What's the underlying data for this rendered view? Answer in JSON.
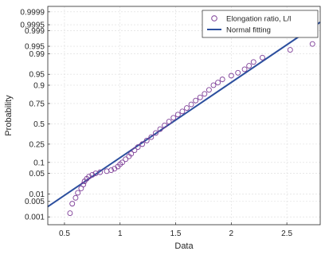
{
  "chart_data": {
    "type": "scatter",
    "title": "",
    "xlabel": "Data",
    "ylabel": "Probability",
    "xlim": [
      0.35,
      2.8
    ],
    "probability_scale": "normal",
    "grid": true,
    "x_ticks": [
      0.5,
      1,
      1.5,
      2,
      2.5
    ],
    "x_tick_labels": [
      "0.5",
      "1",
      "1.5",
      "2",
      "2.5"
    ],
    "y_ticks": [
      0.001,
      0.005,
      0.01,
      0.05,
      0.1,
      0.25,
      0.5,
      0.75,
      0.9,
      0.95,
      0.99,
      0.995,
      0.999,
      0.9995,
      0.9999
    ],
    "y_tick_labels": [
      "0.001",
      "0.005",
      "0.01",
      "0.05",
      "0.1",
      "0.25",
      "0.5",
      "0.75",
      "0.9",
      "0.95",
      "0.99",
      "0.995",
      "0.999",
      "0.9995",
      "0.9999"
    ],
    "legend_position": "top-right",
    "series": [
      {
        "name": "Elongation ratio, L/l",
        "kind": "markers",
        "marker": "circle",
        "color": "#7e3f98",
        "points": [
          [
            0.55,
            0.0015
          ],
          [
            0.57,
            0.004
          ],
          [
            0.6,
            0.007
          ],
          [
            0.62,
            0.011
          ],
          [
            0.65,
            0.016
          ],
          [
            0.67,
            0.022
          ],
          [
            0.68,
            0.028
          ],
          [
            0.7,
            0.034
          ],
          [
            0.72,
            0.04
          ],
          [
            0.75,
            0.045
          ],
          [
            0.78,
            0.05
          ],
          [
            0.82,
            0.054
          ],
          [
            0.88,
            0.058
          ],
          [
            0.92,
            0.062
          ],
          [
            0.95,
            0.068
          ],
          [
            0.98,
            0.078
          ],
          [
            1.0,
            0.09
          ],
          [
            1.02,
            0.1
          ],
          [
            1.05,
            0.12
          ],
          [
            1.08,
            0.14
          ],
          [
            1.1,
            0.16
          ],
          [
            1.13,
            0.19
          ],
          [
            1.16,
            0.22
          ],
          [
            1.2,
            0.25
          ],
          [
            1.24,
            0.29
          ],
          [
            1.28,
            0.33
          ],
          [
            1.32,
            0.38
          ],
          [
            1.36,
            0.43
          ],
          [
            1.4,
            0.48
          ],
          [
            1.44,
            0.53
          ],
          [
            1.48,
            0.58
          ],
          [
            1.52,
            0.62
          ],
          [
            1.56,
            0.66
          ],
          [
            1.6,
            0.7
          ],
          [
            1.64,
            0.74
          ],
          [
            1.68,
            0.78
          ],
          [
            1.72,
            0.81
          ],
          [
            1.76,
            0.84
          ],
          [
            1.8,
            0.87
          ],
          [
            1.84,
            0.9
          ],
          [
            1.88,
            0.915
          ],
          [
            1.92,
            0.93
          ],
          [
            2.0,
            0.945
          ],
          [
            2.06,
            0.955
          ],
          [
            2.12,
            0.965
          ],
          [
            2.16,
            0.973
          ],
          [
            2.2,
            0.98
          ],
          [
            2.28,
            0.986
          ],
          [
            2.53,
            0.993
          ],
          [
            2.73,
            0.996
          ]
        ]
      },
      {
        "name": "Normal fitting",
        "kind": "line",
        "color": "#2c4f9e",
        "mean": 1.45,
        "std": 0.4
      }
    ]
  }
}
